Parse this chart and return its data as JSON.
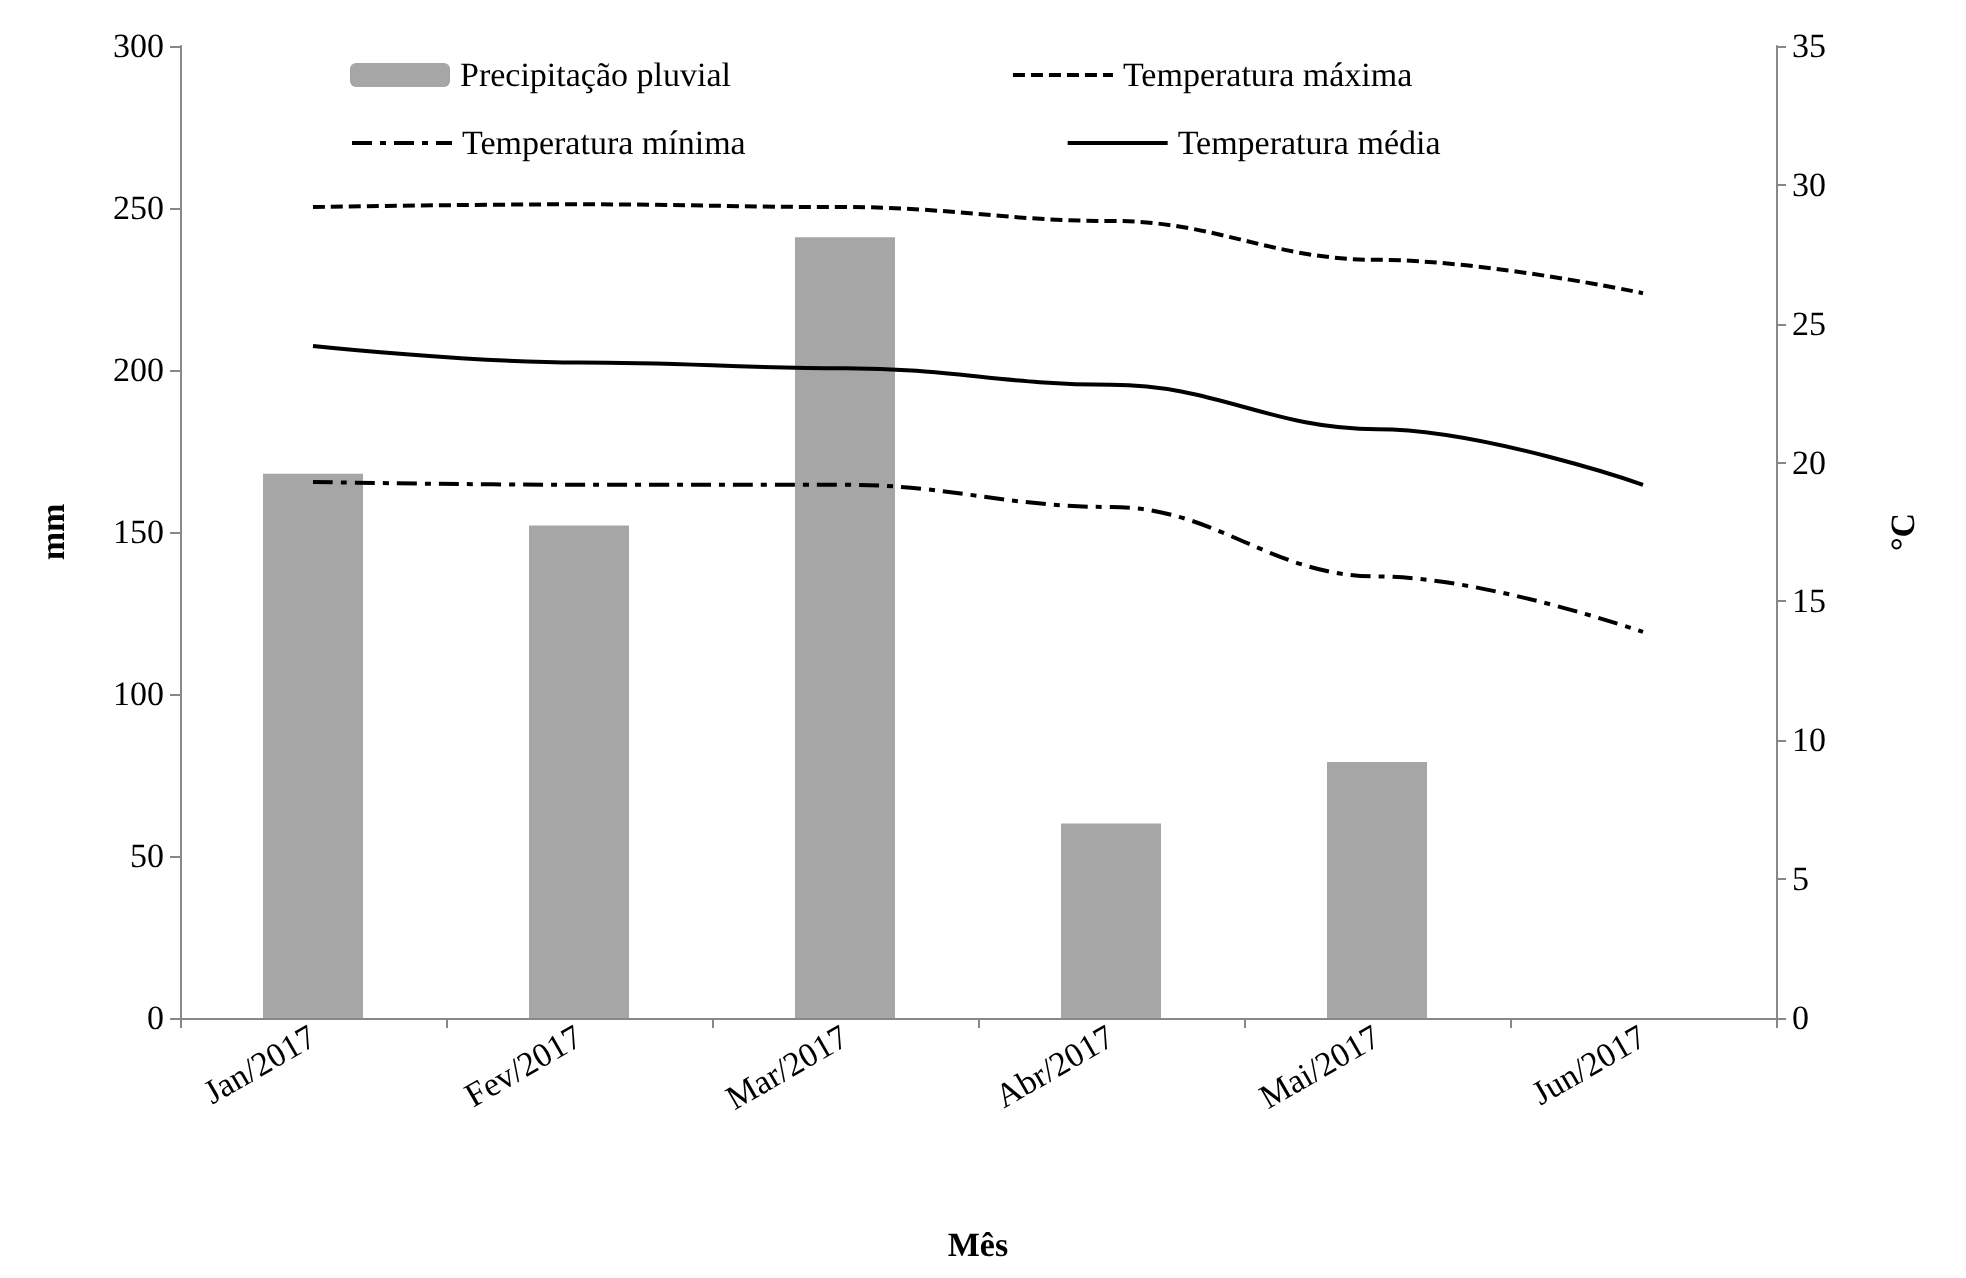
{
  "chart_data": {
    "type": "bar",
    "xlabel": "Mês",
    "ylabel": "mm",
    "y2label": "°C",
    "categories": [
      "Jan/2017",
      "Fev/2017",
      "Mar/2017",
      "Abr/2017",
      "Mai/2017",
      "Jun/2017"
    ],
    "series": [
      {
        "name": "Precipitação pluvial",
        "color": "#a6a6a6",
        "values": [
          168,
          152,
          241,
          60,
          79,
          0
        ]
      },
      {
        "name": "Temperatura máxima",
        "type": "line",
        "axis": "y2",
        "color": "#000000",
        "line_style": "dashed",
        "values": [
          29.2,
          29.3,
          29.2,
          28.7,
          27.3,
          26.1
        ]
      },
      {
        "name": "Temperatura mínima",
        "type": "line",
        "axis": "y2",
        "color": "#000000",
        "line_style": "dashdot",
        "values": [
          19.3,
          19.2,
          19.2,
          18.4,
          15.9,
          13.9
        ]
      },
      {
        "name": "Temperatura média",
        "type": "line",
        "axis": "y2",
        "color": "#000000",
        "line_style": "solid",
        "values": [
          24.2,
          23.6,
          23.4,
          22.8,
          21.2,
          19.2
        ]
      }
    ],
    "ylim": [
      0,
      300
    ],
    "yticks": [
      0,
      50,
      100,
      150,
      200,
      250,
      300
    ],
    "y2lim": [
      0,
      35
    ],
    "y2ticks": [
      0,
      5,
      10,
      15,
      20,
      25,
      30,
      35
    ],
    "grid": false,
    "legend": "top",
    "marker": "none"
  }
}
